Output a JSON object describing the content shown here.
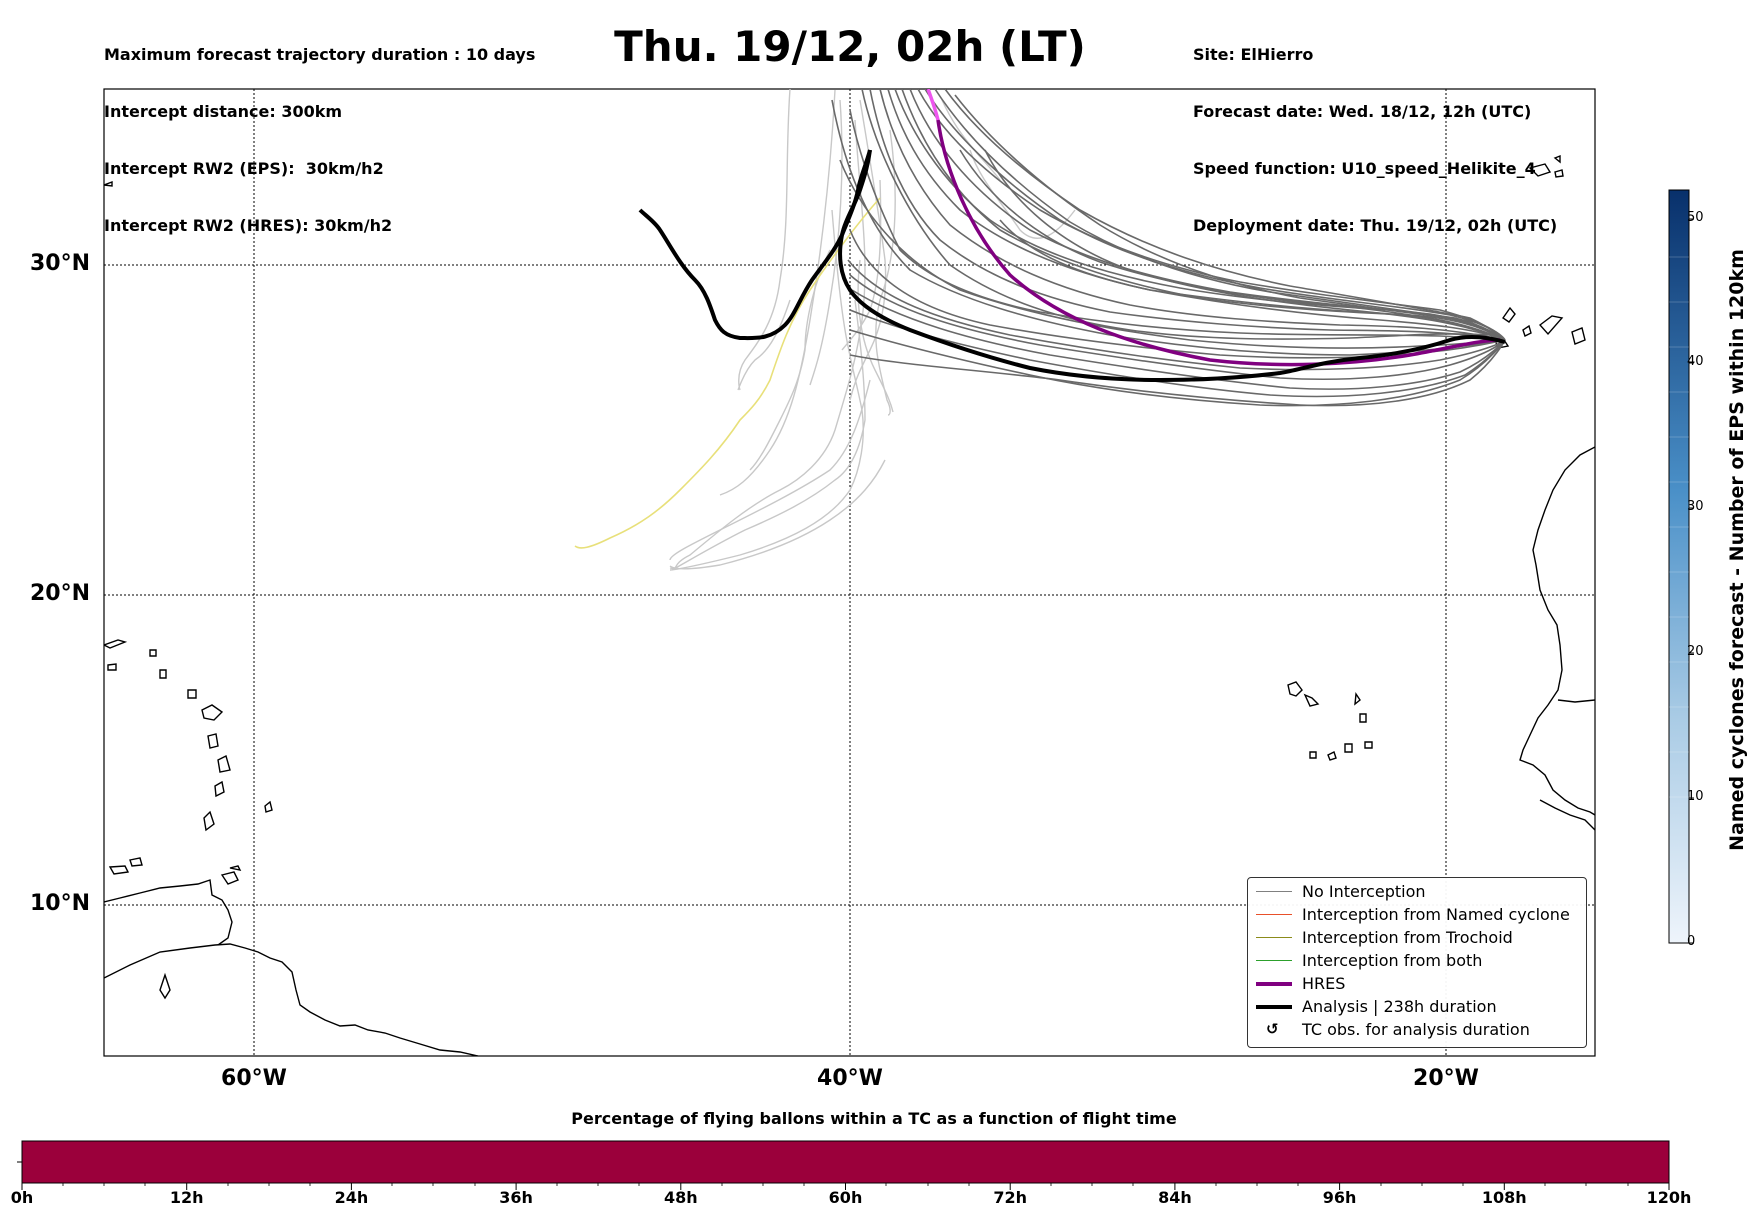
{
  "header": {
    "left_lines": [
      "Maximum forecast trajectory duration : 10 days",
      "Intercept distance: 300km",
      "Intercept RW2 (EPS):  30km/h2",
      "Intercept RW2 (HRES): 30km/h2"
    ],
    "title": "Thu. 19/12, 02h (LT)",
    "right_lines": [
      "Site: ElHierro",
      "Forecast date: Wed. 18/12, 12h (UTC)",
      "Speed function: U10_speed_Helikite_4",
      "Deployment date: Thu. 19/12, 02h (UTC)"
    ]
  },
  "map": {
    "lat_labels": [
      "30°N",
      "20°N",
      "10°N"
    ],
    "lon_labels": [
      "60°W",
      "40°W",
      "20°W"
    ],
    "lat_values": [
      30,
      20,
      10
    ],
    "lon_values": [
      -60,
      -40,
      -20
    ]
  },
  "legend": {
    "items": [
      {
        "label": "No Interception",
        "color": "#808080",
        "style": "thin"
      },
      {
        "label": "Interception from Named cyclone",
        "color": "#e8502a",
        "style": "thin"
      },
      {
        "label": "Interception from Trochoid",
        "color": "#8b8b1a",
        "style": "thin"
      },
      {
        "label": "Interception from both",
        "color": "#2ca02c",
        "style": "thin"
      },
      {
        "label": "HRES",
        "color": "#800080",
        "style": "thick"
      },
      {
        "label": "Analysis | 238h duration",
        "color": "#000000",
        "style": "thick"
      },
      {
        "label": "TC obs. for analysis duration",
        "color": "#000000",
        "style": "symbol",
        "symbol": "↺"
      }
    ]
  },
  "colorbar": {
    "title": "Named cyclones forecast - Number of EPS within 120km",
    "ticks": [
      "0",
      "10",
      "20",
      "30",
      "40",
      "50"
    ],
    "tick_values": [
      0,
      10,
      20,
      30,
      40,
      50
    ],
    "max": 52,
    "color_low": "#e8f0fa",
    "color_high": "#08306b"
  },
  "bottom_bar": {
    "title": "Percentage of flying ballons within a TC as a function of flight time",
    "ticks": [
      "0h",
      "12h",
      "24h",
      "36h",
      "48h",
      "60h",
      "72h",
      "84h",
      "96h",
      "108h",
      "120h"
    ],
    "fill_color": "#9b003b"
  },
  "colors": {
    "eps_gray": "#696969",
    "eps_light": "#c8c8c8",
    "eps_yellow": "#e8e07a",
    "hres": "#800080",
    "hres_light": "#ee55ee",
    "analysis": "#000000"
  }
}
